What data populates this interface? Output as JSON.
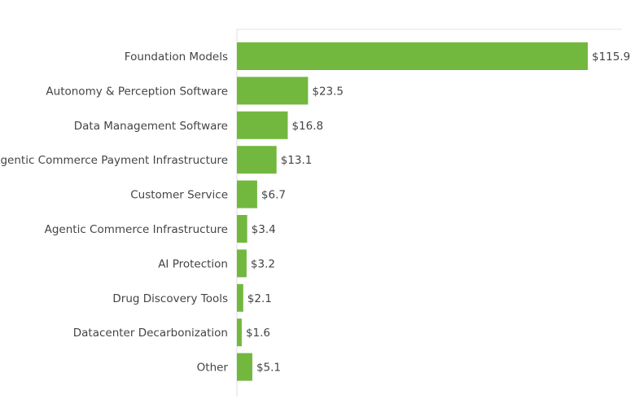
{
  "chart_data": {
    "type": "bar",
    "orientation": "horizontal",
    "categories": [
      "Foundation Models",
      "Autonomy & Perception Software",
      "Data Management Software",
      "Agentic Commerce Payment Infrastructure",
      "Customer Service",
      "Agentic Commerce Infrastructure",
      "AI Protection",
      "Drug Discovery Tools",
      "Datacenter Decarbonization",
      "Other"
    ],
    "values": [
      115.9,
      23.5,
      16.8,
      13.1,
      6.7,
      3.4,
      3.2,
      2.1,
      1.6,
      5.1
    ],
    "data_labels": [
      "$115.9",
      "$23.5",
      "$16.8",
      "$13.1",
      "$6.7",
      "$3.4",
      "$3.2",
      "$2.1",
      "$1.6",
      "$5.1"
    ],
    "title": "",
    "xlabel": "",
    "ylabel": "",
    "xlim": [
      0,
      120
    ],
    "grid": false,
    "colors": {
      "bar": "#72b83f",
      "text": "#444444",
      "axis": "#dddddd"
    }
  }
}
